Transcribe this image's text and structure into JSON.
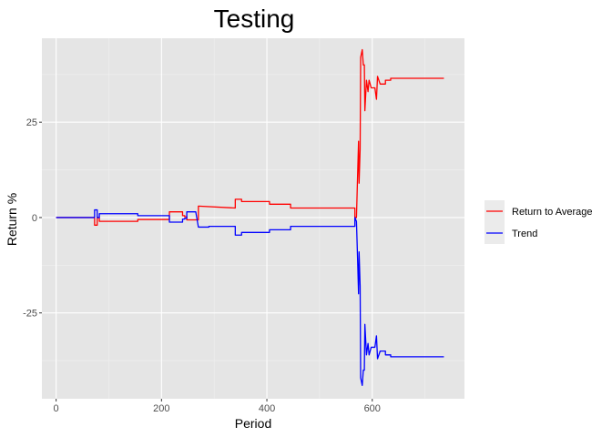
{
  "chart_data": {
    "type": "line",
    "title": "Testing",
    "xlabel": "Period",
    "ylabel": "Return %",
    "xlim": [
      -27,
      775
    ],
    "ylim": [
      -47.5,
      47.0
    ],
    "x_ticks": [
      0,
      200,
      400,
      600
    ],
    "x_tick_labels": [
      "0",
      "200",
      "400",
      "600"
    ],
    "y_ticks": [
      -25,
      0,
      25
    ],
    "y_tick_labels": [
      "-25",
      "0",
      "25"
    ],
    "grid": true,
    "legend_position": "right",
    "colors": {
      "panel": "#e5e5e5",
      "grid_major": "#ffffff",
      "grid_minor": "#f0f0f0",
      "legend_key_bg": "#ebebeb"
    },
    "series": [
      {
        "name": "Return to Average",
        "color": "#ff0000",
        "points": [
          [
            0,
            0
          ],
          [
            73,
            0
          ],
          [
            73,
            -2
          ],
          [
            78,
            -2
          ],
          [
            78,
            0
          ],
          [
            82,
            0
          ],
          [
            82,
            -1
          ],
          [
            155,
            -1
          ],
          [
            155,
            -0.5
          ],
          [
            215,
            -0.5
          ],
          [
            215,
            1.5
          ],
          [
            240,
            1.5
          ],
          [
            240,
            0.5
          ],
          [
            244,
            0.5
          ],
          [
            244,
            0.2
          ],
          [
            248,
            0.2
          ],
          [
            248,
            -0.6
          ],
          [
            270,
            -0.6
          ],
          [
            270,
            3
          ],
          [
            340,
            2.5
          ],
          [
            340,
            4.8
          ],
          [
            352,
            4.8
          ],
          [
            352,
            4.2
          ],
          [
            405,
            4.2
          ],
          [
            405,
            3.5
          ],
          [
            445,
            3.5
          ],
          [
            445,
            2.5
          ],
          [
            567,
            2.5
          ],
          [
            567,
            0
          ],
          [
            570,
            0
          ],
          [
            572,
            10
          ],
          [
            574,
            20
          ],
          [
            575,
            9
          ],
          [
            577,
            18
          ],
          [
            578,
            42
          ],
          [
            581,
            44
          ],
          [
            583,
            40
          ],
          [
            585,
            40
          ],
          [
            586,
            28
          ],
          [
            589,
            36
          ],
          [
            592,
            33
          ],
          [
            594,
            36
          ],
          [
            598,
            34
          ],
          [
            605,
            34
          ],
          [
            608,
            31
          ],
          [
            610,
            37
          ],
          [
            615,
            35
          ],
          [
            625,
            35
          ],
          [
            625,
            36
          ],
          [
            635,
            36
          ],
          [
            635,
            36.5
          ],
          [
            736,
            36.5
          ]
        ]
      },
      {
        "name": "Trend",
        "color": "#0000ff",
        "points": [
          [
            0,
            0
          ],
          [
            73,
            0
          ],
          [
            73,
            2
          ],
          [
            78,
            2
          ],
          [
            78,
            0
          ],
          [
            82,
            0
          ],
          [
            82,
            1
          ],
          [
            155,
            1
          ],
          [
            155,
            0.5
          ],
          [
            215,
            0.5
          ],
          [
            215,
            -1.2
          ],
          [
            240,
            -1.2
          ],
          [
            240,
            -0.4
          ],
          [
            244,
            -0.4
          ],
          [
            244,
            -0.2
          ],
          [
            248,
            -0.2
          ],
          [
            248,
            1.5
          ],
          [
            265,
            1.5
          ],
          [
            270,
            -2.5
          ],
          [
            290,
            -2.5
          ],
          [
            290,
            -2.3
          ],
          [
            340,
            -2.3
          ],
          [
            340,
            -4.6
          ],
          [
            352,
            -4.6
          ],
          [
            352,
            -3.9
          ],
          [
            405,
            -3.9
          ],
          [
            405,
            -3.2
          ],
          [
            445,
            -3.2
          ],
          [
            445,
            -2.3
          ],
          [
            567,
            -2.3
          ],
          [
            567,
            0
          ],
          [
            570,
            -1
          ],
          [
            572,
            -10
          ],
          [
            574,
            -20
          ],
          [
            575,
            -9
          ],
          [
            577,
            -18
          ],
          [
            578,
            -42
          ],
          [
            581,
            -44
          ],
          [
            583,
            -40
          ],
          [
            585,
            -40
          ],
          [
            586,
            -28
          ],
          [
            589,
            -36
          ],
          [
            592,
            -33
          ],
          [
            594,
            -36
          ],
          [
            598,
            -34
          ],
          [
            605,
            -34
          ],
          [
            608,
            -31
          ],
          [
            610,
            -37
          ],
          [
            615,
            -35
          ],
          [
            625,
            -35
          ],
          [
            625,
            -36
          ],
          [
            635,
            -36
          ],
          [
            635,
            -36.5
          ],
          [
            736,
            -36.5
          ]
        ]
      }
    ]
  }
}
